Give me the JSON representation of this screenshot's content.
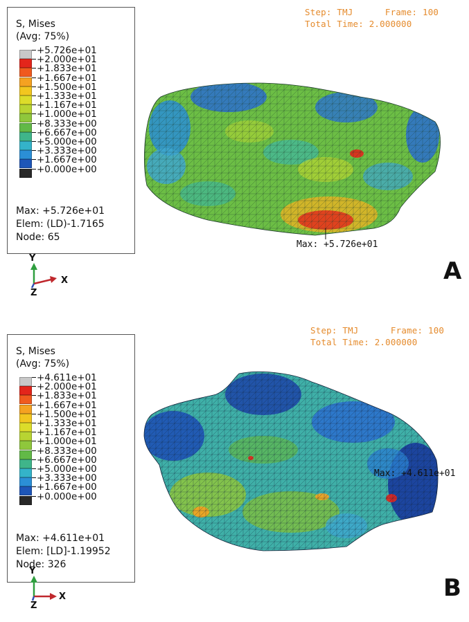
{
  "panels": [
    {
      "id": "A",
      "letter": "A",
      "legend": {
        "title_line1": "S, Mises",
        "title_line2": "(Avg: 75%)",
        "ticks": [
          "+5.726e+01",
          "+2.000e+01",
          "+1.833e+01",
          "+1.667e+01",
          "+1.500e+01",
          "+1.333e+01",
          "+1.167e+01",
          "+1.000e+01",
          "+8.333e+00",
          "+6.667e+00",
          "+5.000e+00",
          "+3.333e+00",
          "+1.667e+00",
          "+0.000e+00"
        ],
        "max_line": "Max: +5.726e+01",
        "elem_line": "Elem: (LD)-1.7165",
        "node_line": "Node: 65"
      },
      "step_line": "Step: TMJ      Frame: 100",
      "time_line": "Total Time: 2.000000",
      "max_label": "Max: +5.726e+01",
      "triad": {
        "y": "Y",
        "x": "X",
        "z": "Z"
      }
    },
    {
      "id": "B",
      "letter": "B",
      "legend": {
        "title_line1": "S, Mises",
        "title_line2": "(Avg: 75%)",
        "ticks": [
          "+4.611e+01",
          "+2.000e+01",
          "+1.833e+01",
          "+1.667e+01",
          "+1.500e+01",
          "+1.333e+01",
          "+1.167e+01",
          "+1.000e+01",
          "+8.333e+00",
          "+6.667e+00",
          "+5.000e+00",
          "+3.333e+00",
          "+1.667e+00",
          "+0.000e+00"
        ],
        "max_line": "Max: +4.611e+01",
        "elem_line": "Elem: [LD]-1.19952",
        "node_line": "Node: 326"
      },
      "step_line": "Step: TMJ      Frame: 100",
      "time_line": "Total Time: 2.000000",
      "max_label": "Max: +4.611e+01",
      "triad": {
        "y": "Y",
        "x": "X",
        "z": "Z"
      }
    }
  ],
  "colors": {
    "contour_band_colors": [
      "#c8c8c8",
      "#e3251b",
      "#f05a1e",
      "#f5a221",
      "#f2c61f",
      "#dcdc2a",
      "#b8d432",
      "#8fc73c",
      "#62b947",
      "#3fb58a",
      "#34b3c9",
      "#2b8fd6",
      "#1e56b8",
      "#282828"
    ],
    "step_text": "#e58b2d",
    "triad_y": "#2f9e3f",
    "triad_x": "#c0282d",
    "triad_z": "#2f4fb5"
  }
}
